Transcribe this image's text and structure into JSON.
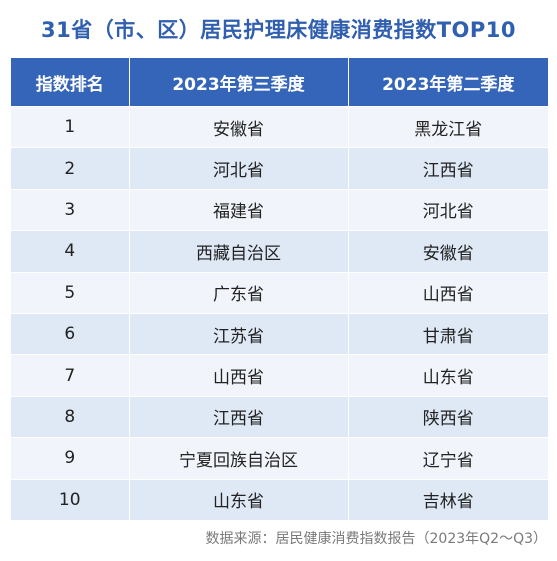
{
  "title": "31省（市、区）居民护理床健康消费指数TOP10",
  "chart_data": {
    "type": "table",
    "columns": [
      "指数排名",
      "2023年第三季度",
      "2023年第二季度"
    ],
    "rows": [
      [
        "1",
        "安徽省",
        "黑龙江省"
      ],
      [
        "2",
        "河北省",
        "江西省"
      ],
      [
        "3",
        "福建省",
        "河北省"
      ],
      [
        "4",
        "西藏自治区",
        "安徽省"
      ],
      [
        "5",
        "广东省",
        "山西省"
      ],
      [
        "6",
        "江苏省",
        "甘肃省"
      ],
      [
        "7",
        "山西省",
        "山东省"
      ],
      [
        "8",
        "江西省",
        "陕西省"
      ],
      [
        "9",
        "宁夏回族自治区",
        "辽宁省"
      ],
      [
        "10",
        "山东省",
        "吉林省"
      ]
    ]
  },
  "source": "数据来源：居民健康消费指数报告（2023年Q2～Q3）",
  "colors": {
    "title": "#2f5fae",
    "header_bg": "#3565b8",
    "row_odd": "#f1f5fb",
    "row_even": "#dfe8f5"
  }
}
